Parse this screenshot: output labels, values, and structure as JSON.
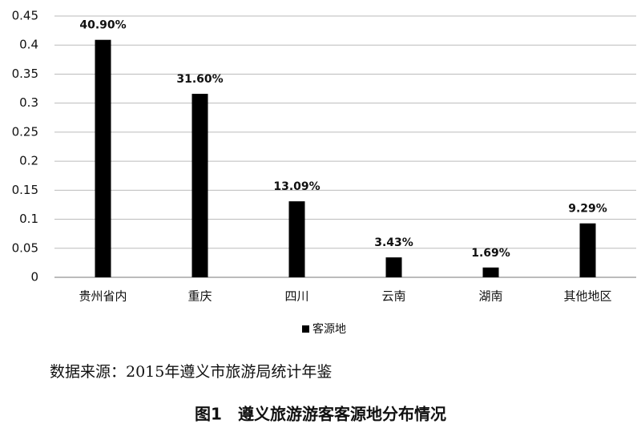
{
  "chart_data": {
    "type": "bar",
    "categories": [
      "贵州省内",
      "重庆",
      "四川",
      "云南",
      "湖南",
      "其他地区"
    ],
    "series": [
      {
        "name": "客源地",
        "color": "#000000",
        "values": [
          0.409,
          0.316,
          0.1309,
          0.0343,
          0.0169,
          0.0929
        ],
        "value_labels": [
          "40.90%",
          "31.60%",
          "13.09%",
          "3.43%",
          "1.69%",
          "9.29%"
        ]
      }
    ],
    "ylim": [
      0,
      0.45
    ],
    "yticks": [
      0,
      0.05,
      0.1,
      0.15,
      0.2,
      0.25,
      0.3,
      0.35,
      0.4,
      0.45
    ],
    "grid": true,
    "legend": "bottom",
    "source": "数据来源：2015年遵义市旅游局统计年鉴",
    "caption": "图1　遵义旅游游客客源地分布情况"
  }
}
